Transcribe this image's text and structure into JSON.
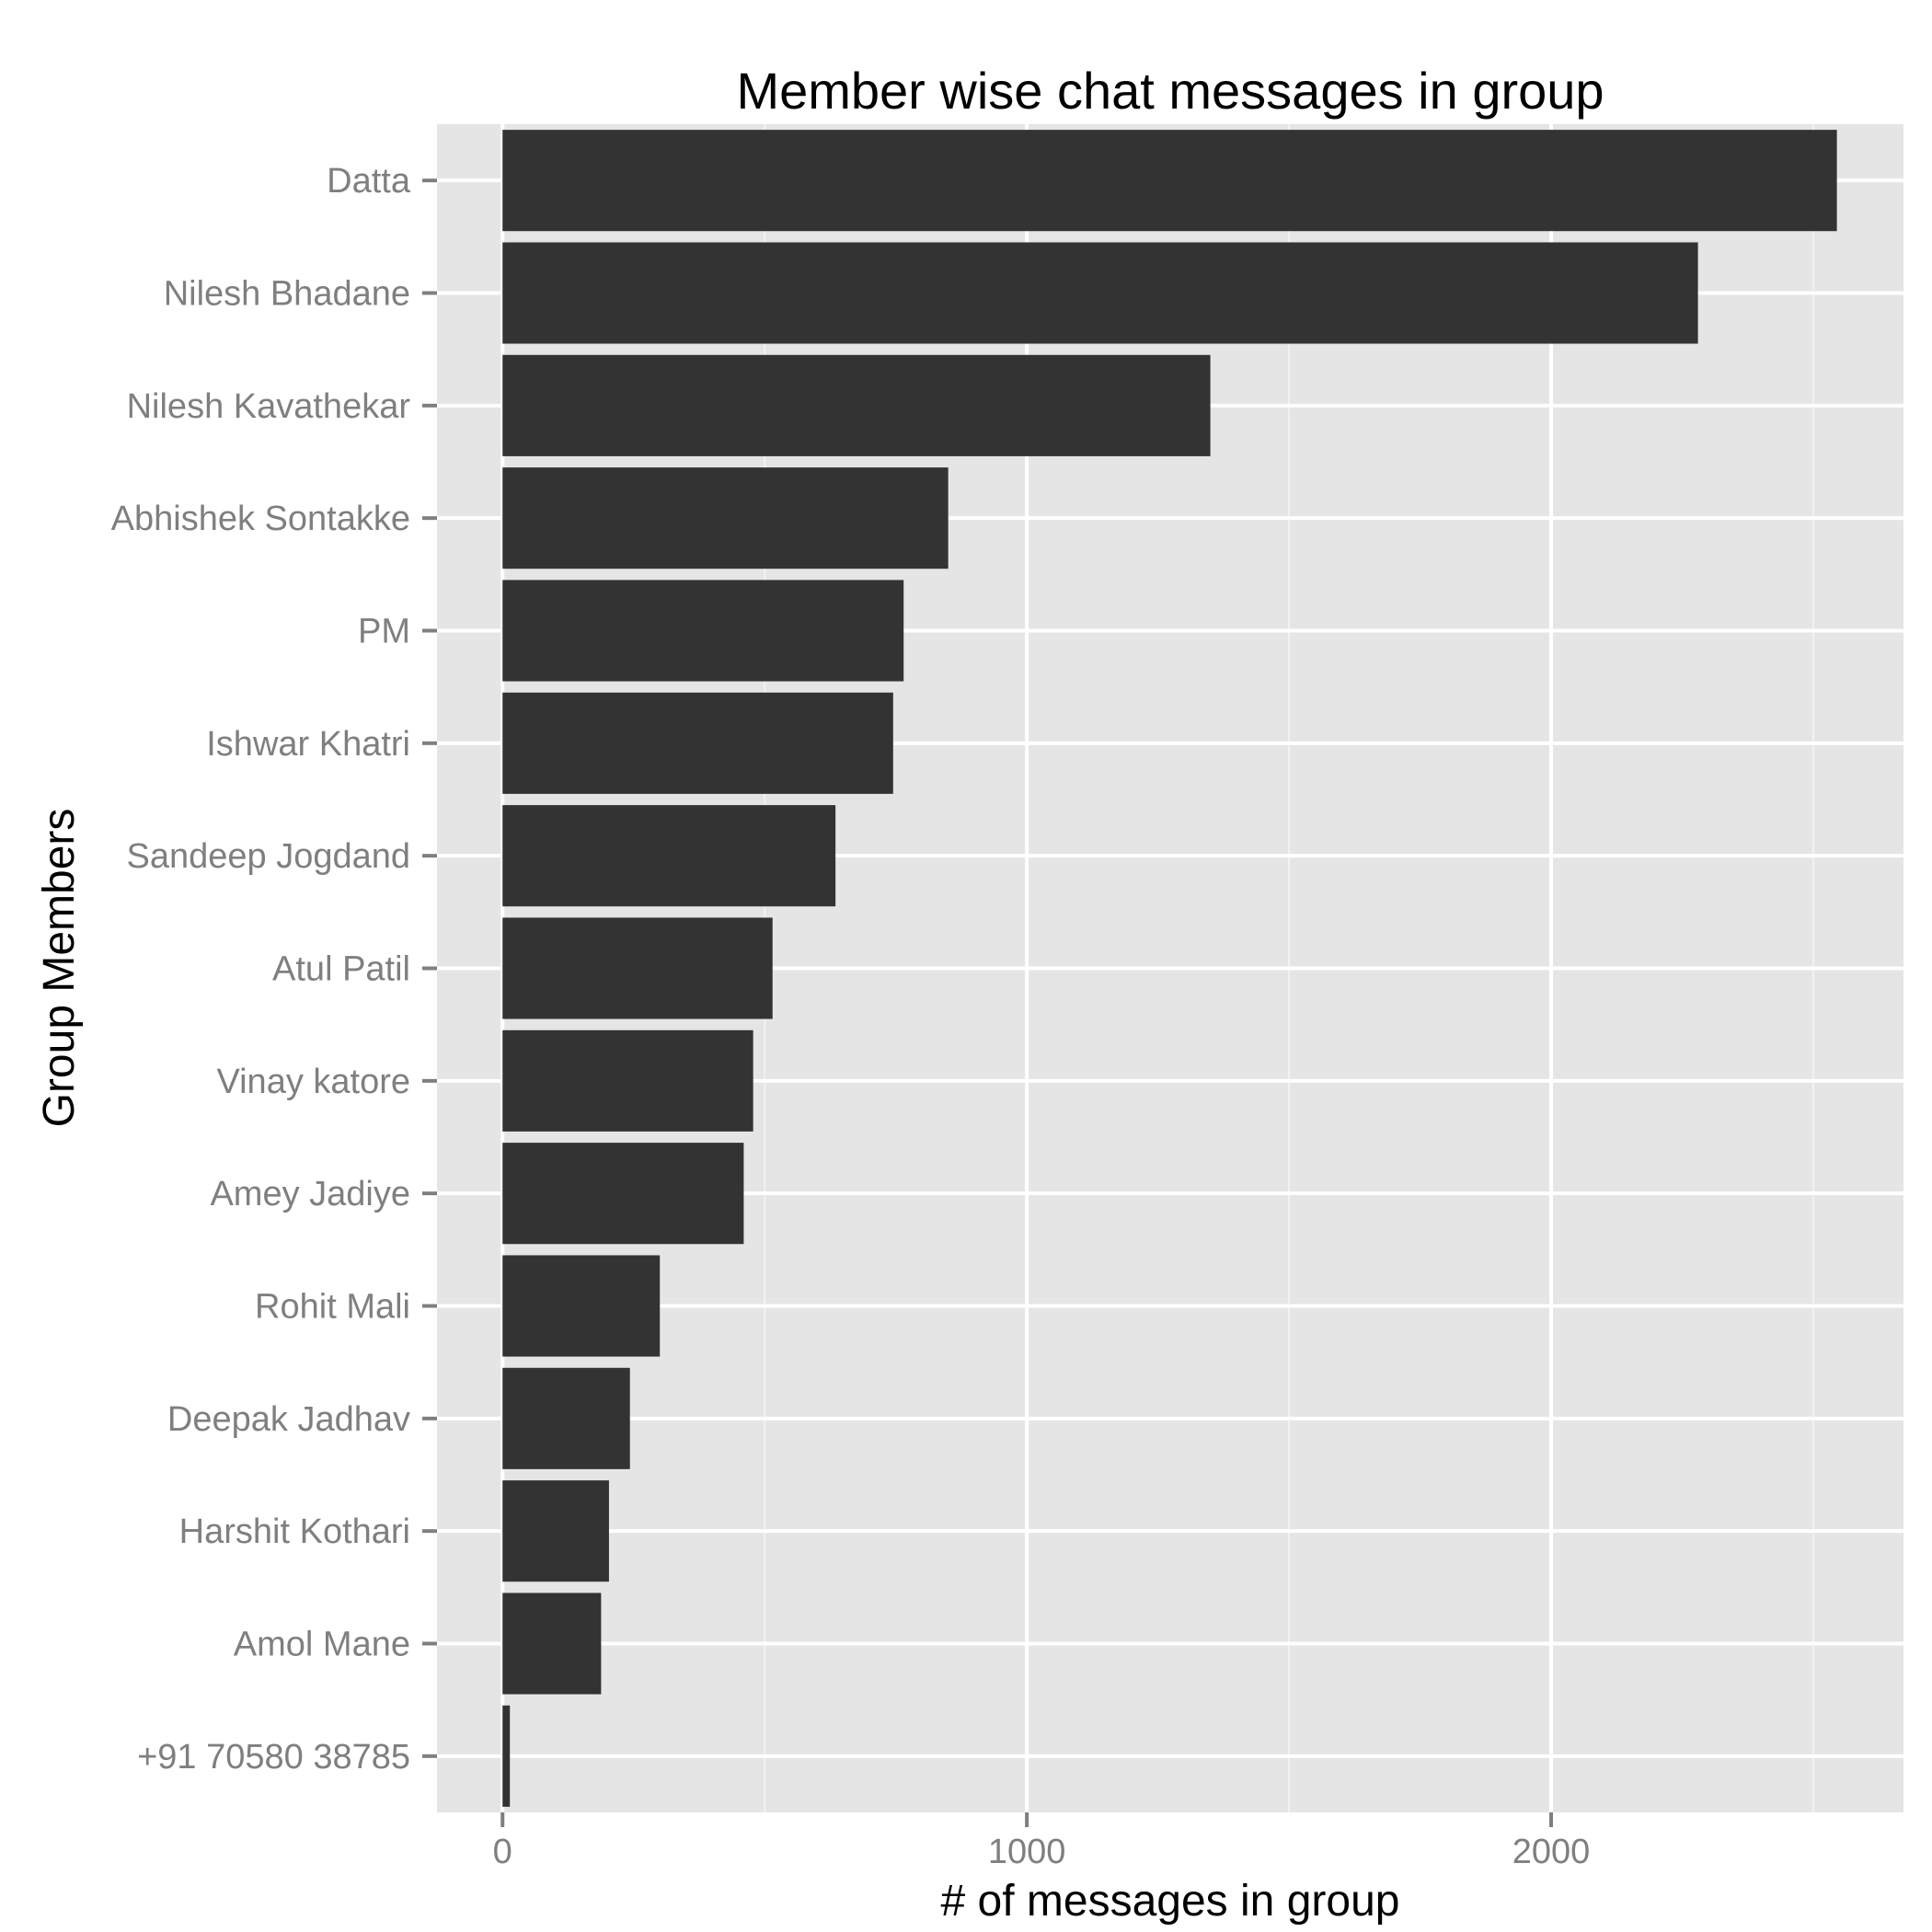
{
  "chart_data": {
    "type": "bar",
    "orientation": "horizontal",
    "title": "Member wise chat messages in group",
    "xlabel": "# of messages in group",
    "ylabel": "Group Members",
    "categories": [
      "Datta",
      "Nilesh Bhadane",
      "Nilesh Kavathekar",
      "Abhishek Sontakke",
      "PM",
      "Ishwar Khatri",
      "Sandeep Jogdand",
      "Atul Patil",
      "Vinay katore",
      "Amey Jadiye",
      "Rohit Mali",
      "Deepak Jadhav",
      "Harshit Kothari",
      "Amol Mane",
      "+91 70580 38785"
    ],
    "values": [
      2545,
      2280,
      1350,
      850,
      765,
      745,
      635,
      515,
      478,
      460,
      300,
      243,
      203,
      188,
      14
    ],
    "xlim": [
      -125,
      2672
    ],
    "xticks": [
      0,
      1000,
      2000
    ],
    "xtick_labels": [
      "0",
      "1000",
      "2000"
    ],
    "grid": true,
    "legend": "none",
    "colors": {
      "bar": "#333333",
      "panel": "#e5e5e5",
      "grid_major": "#ffffff",
      "grid_minor": "#f2f2f2",
      "tick_label": "#7f7f7f",
      "tick_mark": "#7f7f7f",
      "text": "#000000",
      "background": "#ffffff"
    }
  }
}
